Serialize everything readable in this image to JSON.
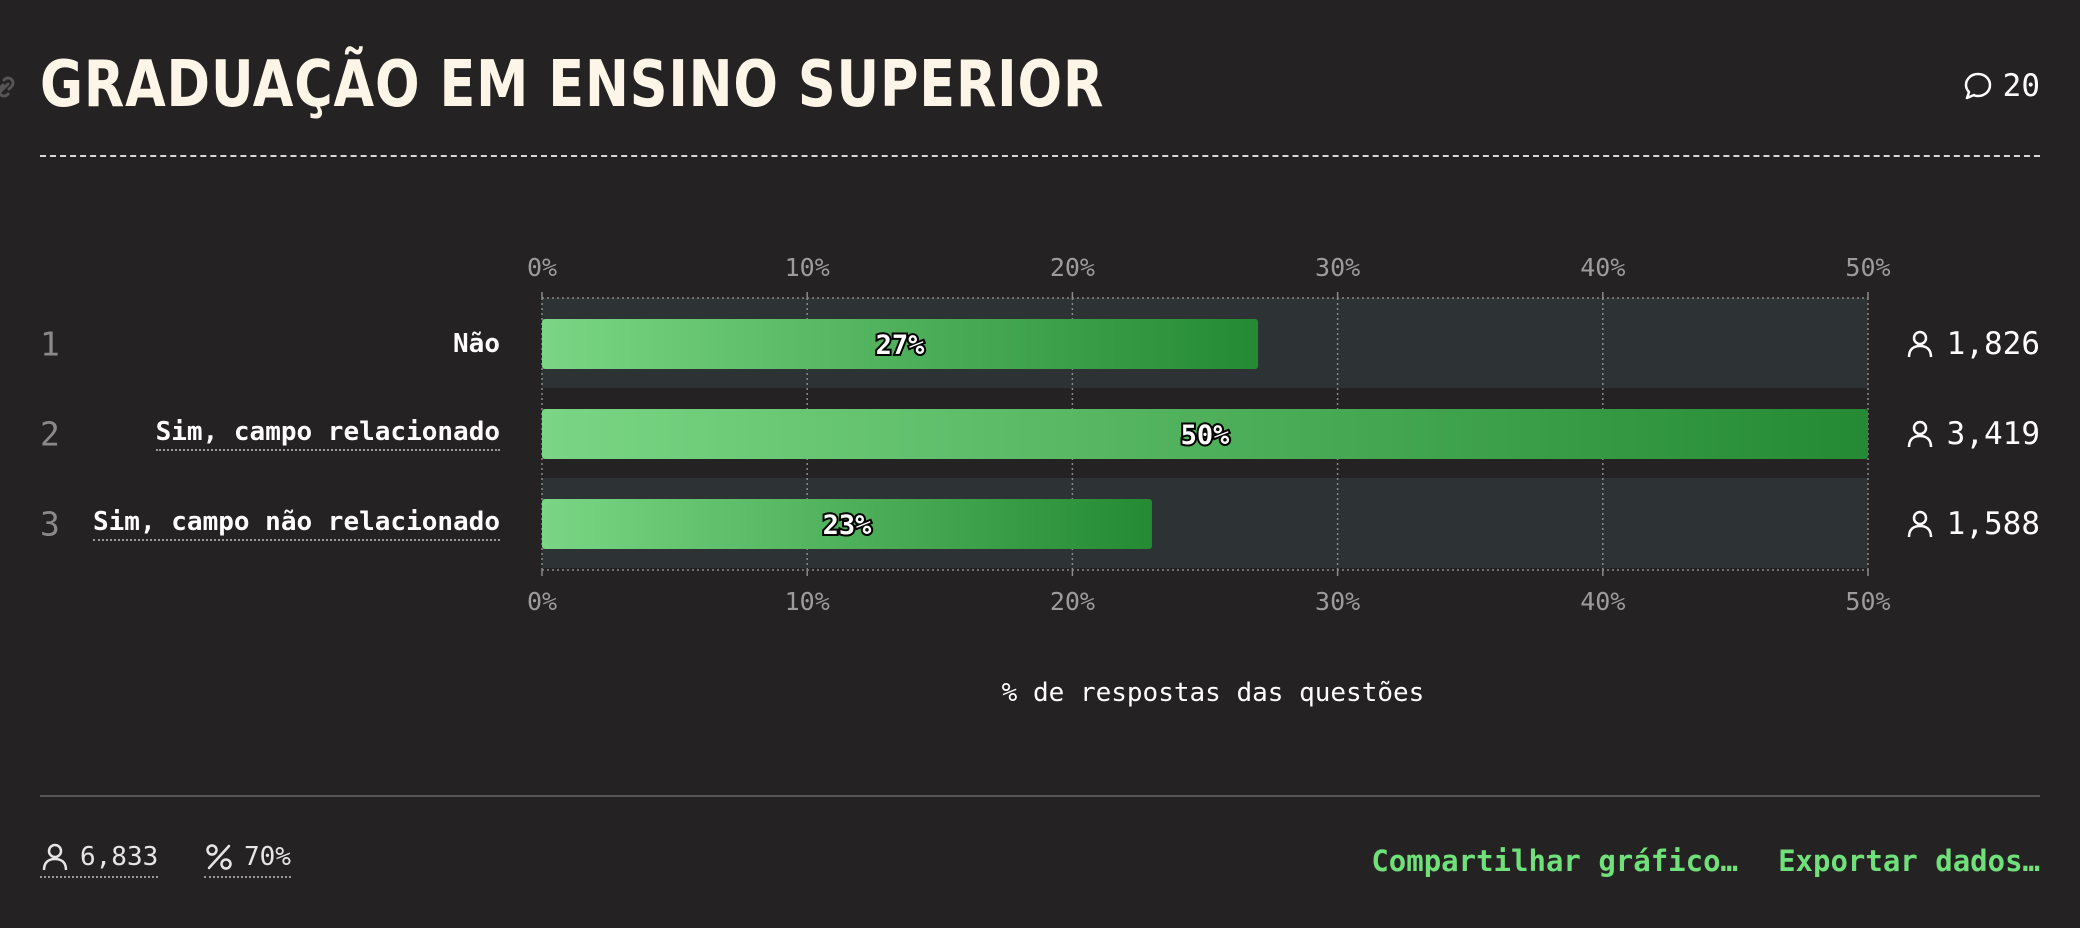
{
  "header": {
    "title": "GRADUAÇÃO EM ENSINO SUPERIOR",
    "comment_count": "20"
  },
  "chart_data": {
    "type": "bar",
    "orientation": "horizontal",
    "categories": [
      "Não",
      "Sim, campo relacionado",
      "Sim, campo não relacionado"
    ],
    "row_numbers": [
      "1",
      "2",
      "3"
    ],
    "values": [
      27,
      50,
      23
    ],
    "value_labels": [
      "27%",
      "50%",
      "23%"
    ],
    "counts": [
      "1,826",
      "3,419",
      "1,588"
    ],
    "xlabel": "% de respostas das questões",
    "xlim": [
      0,
      50
    ],
    "x_ticks": [
      "0%",
      "10%",
      "20%",
      "30%",
      "40%",
      "50%"
    ],
    "grid": true,
    "colors": {
      "bar_start": "#7ad684",
      "bar_end": "#248a33",
      "track": "#2d3235",
      "label_positive": "#6fe07a"
    }
  },
  "footer": {
    "respondents": "6,833",
    "percent": "70%",
    "share_label": "Compartilhar gráfico…",
    "export_label": "Exportar dados…"
  }
}
